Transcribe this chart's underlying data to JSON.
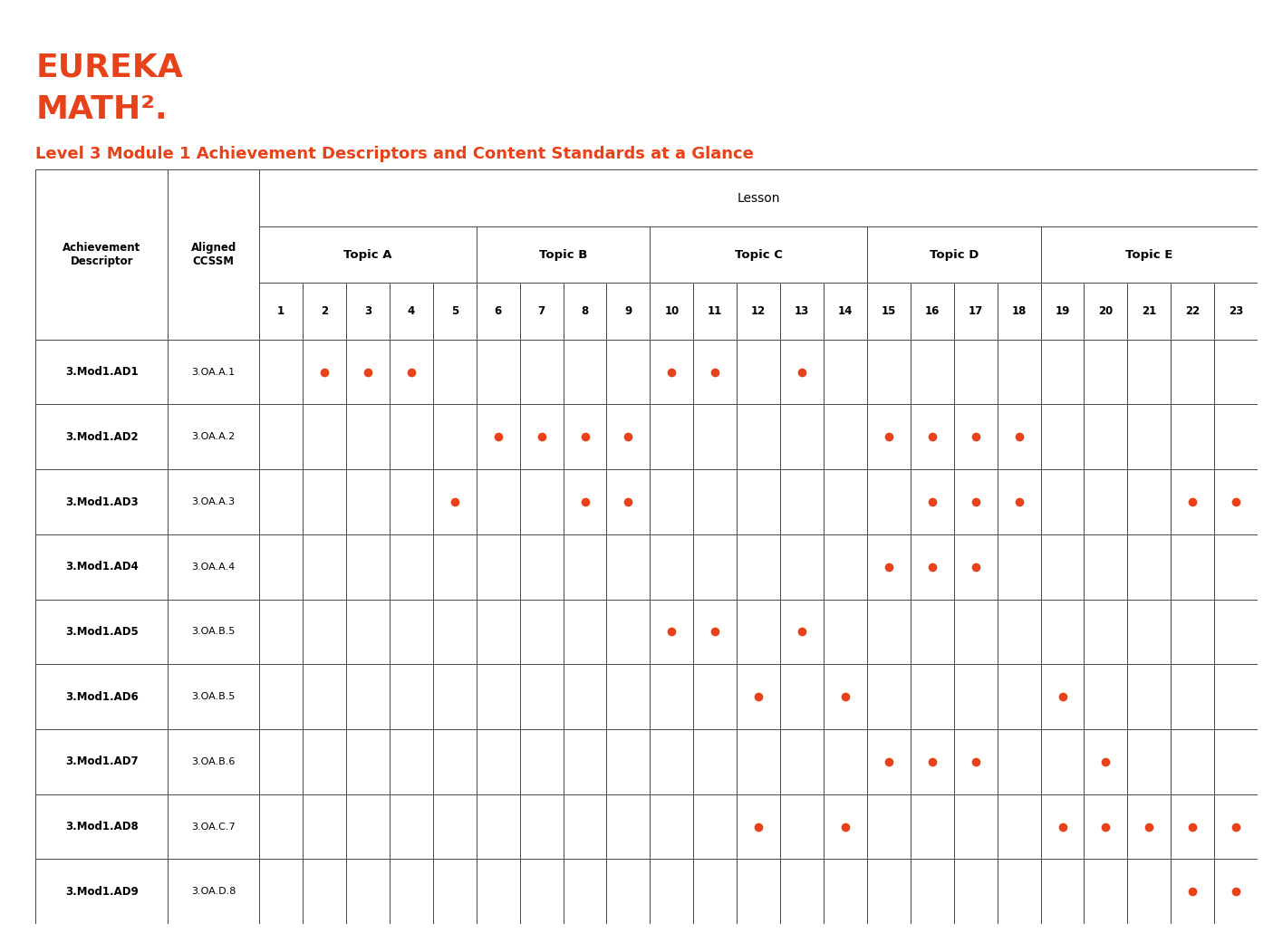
{
  "title": "Level 3 Module 1 Achievement Descriptors and Content Standards at a Glance",
  "logo_line1": "EUREKA",
  "logo_line2": "MATH².",
  "orange_color": "#E8421A",
  "dot_color": "#E8421A",
  "table_border_color": "#4a4a4a",
  "lesson_header": "Lesson",
  "topics": [
    {
      "name": "Topic A",
      "lessons": [
        1,
        2,
        3,
        4,
        5
      ]
    },
    {
      "name": "Topic B",
      "lessons": [
        6,
        7,
        8,
        9
      ]
    },
    {
      "name": "Topic C",
      "lessons": [
        10,
        11,
        12,
        13,
        14
      ]
    },
    {
      "name": "Topic D",
      "lessons": [
        15,
        16,
        17,
        18
      ]
    },
    {
      "name": "Topic E",
      "lessons": [
        19,
        20,
        21,
        22,
        23
      ]
    }
  ],
  "lessons": [
    1,
    2,
    3,
    4,
    5,
    6,
    7,
    8,
    9,
    10,
    11,
    12,
    13,
    14,
    15,
    16,
    17,
    18,
    19,
    20,
    21,
    22,
    23
  ],
  "col1_label_line1": "Achievement",
  "col1_label_line2": "Descriptor",
  "col2_label_line1": "Aligned",
  "col2_label_line2": "CCSSM",
  "rows": [
    {
      "ad": "3.Mod1.AD1",
      "ccssm": "3.OA.A.1",
      "dots": [
        2,
        3,
        4,
        10,
        11,
        13
      ]
    },
    {
      "ad": "3.Mod1.AD2",
      "ccssm": "3.OA.A.2",
      "dots": [
        6,
        7,
        8,
        9,
        15,
        16,
        17,
        18
      ]
    },
    {
      "ad": "3.Mod1.AD3",
      "ccssm": "3.OA.A.3",
      "dots": [
        5,
        8,
        9,
        16,
        17,
        18,
        22,
        23
      ]
    },
    {
      "ad": "3.Mod1.AD4",
      "ccssm": "3.OA.A.4",
      "dots": [
        15,
        16,
        17
      ]
    },
    {
      "ad": "3.Mod1.AD5",
      "ccssm": "3.OA.B.5",
      "dots": [
        10,
        11,
        13
      ]
    },
    {
      "ad": "3.Mod1.AD6",
      "ccssm": "3.OA.B.5",
      "dots": [
        12,
        14,
        19
      ]
    },
    {
      "ad": "3.Mod1.AD7",
      "ccssm": "3.OA.B.6",
      "dots": [
        15,
        16,
        17,
        20
      ]
    },
    {
      "ad": "3.Mod1.AD8",
      "ccssm": "3.OA.C.7",
      "dots": [
        12,
        14,
        19,
        20,
        21,
        22,
        23
      ]
    },
    {
      "ad": "3.Mod1.AD9",
      "ccssm": "3.OA.D.8",
      "dots": [
        22,
        23
      ]
    }
  ],
  "fig_width": 14.05,
  "fig_height": 10.41,
  "dpi": 100
}
